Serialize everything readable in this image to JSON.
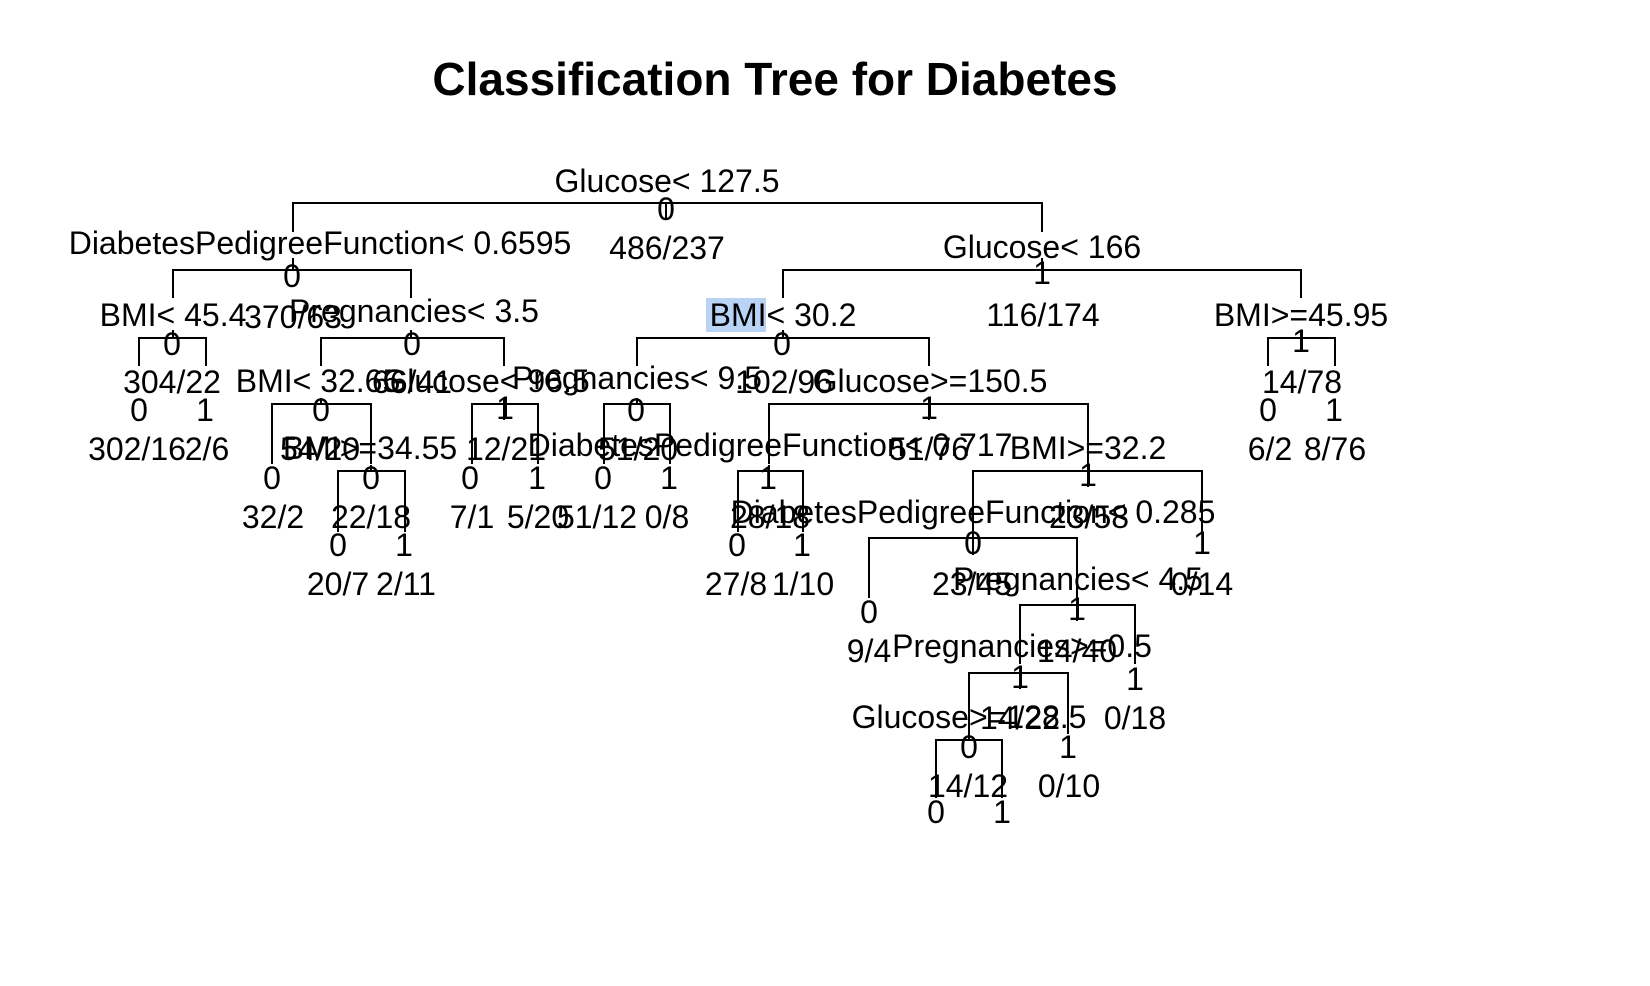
{
  "title": "Classification Tree for Diabetes",
  "highlight_color": "#b8d3f3",
  "tree": {
    "splits": {
      "root": "Glucose< 127.5",
      "n_l": "DiabetesPedigreeFunction< 0.6595",
      "n_r": "Glucose< 166",
      "n_ll": "BMI< 45.4",
      "n_lr": "Pregnancies< 3.5",
      "n_rl": "BMI< 30.2",
      "n_rr": "BMI>=45.95",
      "n_lrl": "BMI< 32.65",
      "n_lrr": "Glucose< 96.5",
      "n_rll": "Pregnancies< 9.5",
      "n_rlr": "Glucose>=150.5",
      "n_lrlr": "BMI>=34.55",
      "n_rlll": "DiabetesPedigreeFunction< 0.717",
      "n_rlrr": "BMI>=32.2",
      "n_rllll": "DiabetesPedigreeFunction< 0.285",
      "n_rlrrl": "Pregnancies< 4.5",
      "n_rlrrll": "Pregnancies>=0.5",
      "n_rlrrlll": "Glucose>=128.5"
    },
    "classes": {
      "root": "0",
      "n_l": "0",
      "n_r": "1",
      "n_ll": "0",
      "l_llr": "1",
      "n_lr": "0",
      "l_lll": "0",
      "n_lrl": "0",
      "n_lrr": "1",
      "l_lrll": "0",
      "n_lrlr": "0",
      "l_lrlrl": "0",
      "l_lrlrr": "1",
      "l_lrrl": "0",
      "l_lrrr": "1",
      "n_rl": "0",
      "l_rlr": "1",
      "n_rr": "1",
      "l_rrl": "0",
      "l_rrr": "1",
      "n_rll": "0",
      "l_rllr": "1",
      "n_rlll": "0",
      "l_rllll": "0",
      "l_rlllr": "1",
      "n_rlr": "1",
      "l_rlrl": "1",
      "n_rlrr": "1",
      "n_rllll": "0",
      "l_rlrrr": "1",
      "n_rlrrl": "1",
      "l_rlrrlr": "1",
      "n_rlrrll": "1",
      "n_rlrrlll": "0",
      "l_rlrrllr": "1",
      "l_rlrrllll": "0",
      "l_rlrrlllr": "1",
      "l_rlrrlr_b": "1"
    },
    "counts": {
      "root": "486/237",
      "n_l": "370/63",
      "n_r": "116/174",
      "n_ll": "304/22",
      "l_lll": "302/16",
      "l_llr": "2/6",
      "n_lr": "66/41",
      "n_lrl": "54/20",
      "n_lrr": "12/21",
      "l_lrll": "32/2",
      "n_lrlr": "22/18",
      "l_lrlrl": "20/7",
      "l_lrlrr": "2/11",
      "l_lrrl": "7/1",
      "l_lrrr": "5/20",
      "n_rl": "102/96",
      "n_rr": "14/78",
      "l_rrl": "6/2",
      "l_rrr": "8/76",
      "n_rll": "51/20",
      "n_rlr": "51/76",
      "n_rlll": "51/12",
      "l_rllr": "0/8",
      "l_rllll": "27/8",
      "l_rlllr": "1/10",
      "l_rlrl": "28/18",
      "n_rlrr": "23/58",
      "n_rllll": "23/45",
      "l_rlrrr": "0/14",
      "l_rlrrlr": "9/4",
      "n_rlrrl": "14/40",
      "n_rlrrll": "14/22",
      "l_rlrrlr_b": "0/18",
      "n_rlrrlll": "14/12",
      "l_rlrrllr": "0/10"
    }
  }
}
